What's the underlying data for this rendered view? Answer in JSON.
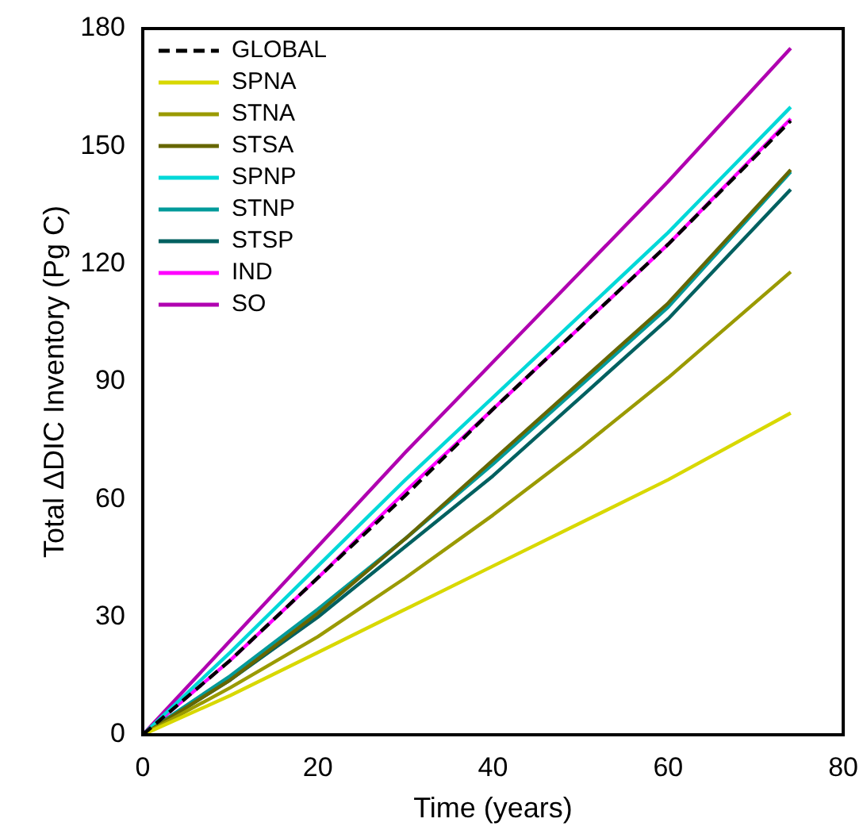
{
  "chart_data": {
    "type": "line",
    "xlabel": "Time (years)",
    "ylabel": "Total ΔDIC Inventory (Pg C)",
    "x": [
      0,
      10,
      20,
      30,
      40,
      50,
      60,
      74
    ],
    "series": [
      {
        "name": "GLOBAL",
        "color": "#000000",
        "line_style": "dashed",
        "values": [
          0,
          19,
          40,
          61,
          83,
          104,
          125,
          156.5
        ]
      },
      {
        "name": "SPNA",
        "color": "#d8d800",
        "values": [
          0,
          10,
          21,
          32,
          43,
          54,
          65,
          82
        ]
      },
      {
        "name": "STNA",
        "color": "#9a9a00",
        "values": [
          0,
          12,
          25,
          40,
          56,
          73,
          91,
          118
        ]
      },
      {
        "name": "STSA",
        "color": "#666600",
        "values": [
          0,
          14,
          31,
          50,
          70,
          90,
          110,
          144
        ]
      },
      {
        "name": "SPNP",
        "color": "#00d8d8",
        "values": [
          0,
          21,
          43,
          65,
          86,
          107,
          128,
          160
        ]
      },
      {
        "name": "STNP",
        "color": "#009a9a",
        "values": [
          0,
          15,
          32,
          50,
          69,
          89,
          109,
          143.5
        ]
      },
      {
        "name": "STSP",
        "color": "#006060",
        "values": [
          0,
          14,
          30,
          48,
          66,
          86,
          106,
          139
        ]
      },
      {
        "name": "IND",
        "color": "#ff00ff",
        "values": [
          0,
          19,
          40,
          62,
          83,
          104,
          125,
          157
        ]
      },
      {
        "name": "SO",
        "color": "#b000b0",
        "values": [
          0,
          24,
          48,
          72,
          95,
          118,
          141,
          175
        ]
      }
    ],
    "xlim": [
      0,
      80
    ],
    "xticks": [
      0,
      20,
      40,
      60,
      80
    ],
    "ylim": [
      0,
      180
    ],
    "yticks": [
      0,
      30,
      60,
      90,
      120,
      150,
      180
    ],
    "grid": false,
    "legend": "top left",
    "marker": "none",
    "line_style": "solid"
  }
}
